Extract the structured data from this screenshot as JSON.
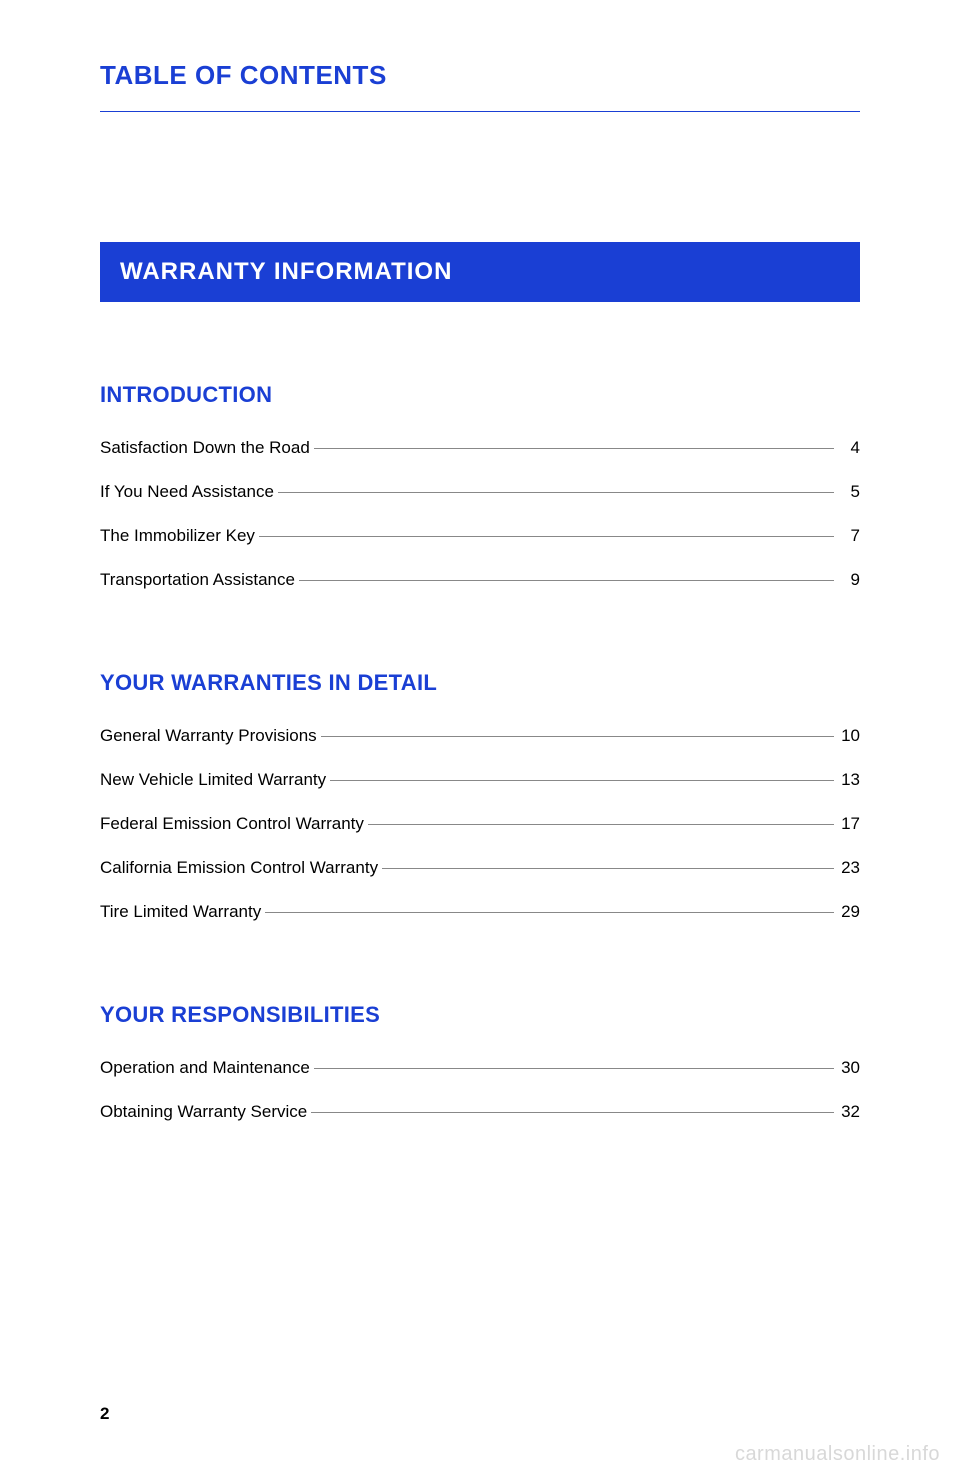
{
  "colors": {
    "accent": "#1a3fd4",
    "banner_bg": "#1a3fd4",
    "banner_text": "#ffffff",
    "page_bg": "#ffffff",
    "body_text": "#000000",
    "leader_line": "#888888",
    "watermark": "#d8d8d8"
  },
  "typography": {
    "page_title_size_pt": 20,
    "banner_size_pt": 18,
    "subsection_size_pt": 17,
    "entry_size_pt": 13,
    "font_family": "Arial"
  },
  "page_title": "TABLE OF CONTENTS",
  "section_banner": "WARRANTY INFORMATION",
  "subsections": [
    {
      "title": "INTRODUCTION",
      "entries": [
        {
          "label": "Satisfaction Down the Road",
          "page": "4"
        },
        {
          "label": "If You Need Assistance",
          "page": "5"
        },
        {
          "label": "The Immobilizer Key",
          "page": "7"
        },
        {
          "label": "Transportation Assistance",
          "page": "9"
        }
      ]
    },
    {
      "title": "YOUR WARRANTIES IN DETAIL",
      "entries": [
        {
          "label": "General Warranty Provisions",
          "page": "10"
        },
        {
          "label": "New Vehicle Limited Warranty",
          "page": "13"
        },
        {
          "label": "Federal Emission Control Warranty",
          "page": "17"
        },
        {
          "label": "California Emission Control Warranty",
          "page": "23"
        },
        {
          "label": "Tire Limited Warranty",
          "page": "29"
        }
      ]
    },
    {
      "title": "YOUR RESPONSIBILITIES",
      "entries": [
        {
          "label": "Operation and Maintenance",
          "page": "30"
        },
        {
          "label": "Obtaining Warranty Service",
          "page": "32"
        }
      ]
    }
  ],
  "page_number": "2",
  "watermark": "carmanualsonline.info"
}
